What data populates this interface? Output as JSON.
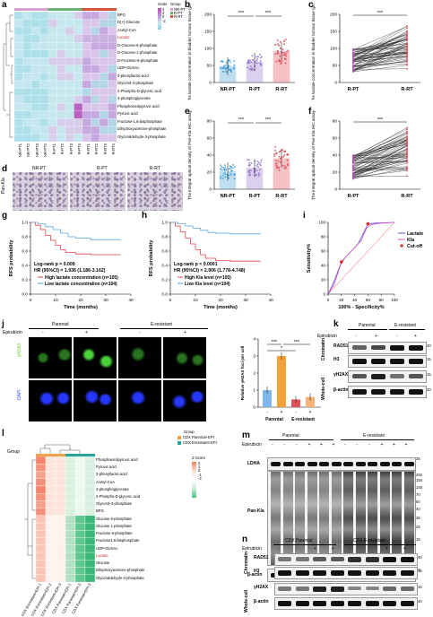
{
  "panels": {
    "a": {
      "label": "a",
      "metabolites": [
        "BPG",
        "D(+)-Glucose",
        "Acetyl-CoA",
        "Lactate",
        "D-Glucose-6-phosphate",
        "D-Glucose-1-phosphate",
        "D-Fructose-6-phosphate",
        "UDP-GlcNAc",
        "3-phenyllactic-acid",
        "Glycerol-3-phosphate",
        "2-Phospho-D-glyceric acid",
        "3-phosphoglycerate",
        "Phosphoenolpyruvic acid",
        "Pyruvic acid",
        "Fructose-1,6-bisphosphate",
        "Dihydroxyacetone-phosphate",
        "Glyceraldehyde-3-phosphate"
      ],
      "samples": [
        "NR-PT1",
        "NR-PT2",
        "NR-PT3",
        "NR-PT4",
        "R-PT1",
        "R-PT2",
        "R-PT3",
        "R-PT4",
        "R-RT1",
        "R-RT2",
        "R-RT3",
        "R-RT4"
      ],
      "scale_title": "Scale",
      "scale_ticks": [
        "4",
        "2",
        "0",
        "-2"
      ],
      "group_title": "Group",
      "groups": [
        "NR-PT",
        "R-PT",
        "R-RT"
      ],
      "group_colors": [
        "#d8a1d0",
        "#67b26f",
        "#d2573a"
      ]
    },
    "b": {
      "label": "b",
      "ylabel": "The lactate concentration in bladder tumour tissue (μmol/g)",
      "categories": [
        "NR-PT",
        "R-PT",
        "R-RT"
      ],
      "sig": [
        "***",
        "***"
      ],
      "yticks": [
        "0",
        "50",
        "100",
        "150",
        "200"
      ]
    },
    "c": {
      "label": "c",
      "ylabel": "The lactate concentration in bladder tumour tissue (μmol/g)",
      "categories": [
        "R-PT",
        "R-RT"
      ],
      "sig": "***",
      "yticks": [
        "0",
        "50",
        "100",
        "150",
        "200"
      ]
    },
    "d": {
      "label": "d",
      "cols": [
        "NR-PT",
        "R-PT",
        "R-RT"
      ],
      "row": "Pan-Kla"
    },
    "e": {
      "label": "e",
      "ylabel": "The integral optical density of Pan-Kla IHC assay",
      "categories": [
        "NR-PT",
        "R-PT",
        "R-RT"
      ],
      "sig": [
        "***",
        "***"
      ],
      "yticks": [
        "0",
        "20",
        "40",
        "60",
        "80"
      ]
    },
    "f": {
      "label": "f",
      "ylabel": "The integral optical density of Pan-Kla IHC assay",
      "categories": [
        "R-PT",
        "R-RT"
      ],
      "sig": "***",
      "yticks": [
        "0",
        "20",
        "40",
        "60",
        "80"
      ]
    },
    "g": {
      "label": "g",
      "ylabel": "RFS probability",
      "xlabel": "Time (months)",
      "logrank": "Log-rank p = 0.009",
      "hr": "HR (95%CI) = 1.936 (1.186-3.162)",
      "leg1": "High lactate concentration (n=105)",
      "leg2": "Low lactate concentration (n=104)",
      "xticks": [
        "0",
        "10",
        "20",
        "30",
        "40"
      ],
      "yticks": [
        "0.0",
        "0.2",
        "0.4",
        "0.6",
        "0.8",
        "1.0"
      ]
    },
    "h": {
      "label": "h",
      "ylabel": "RFS probability",
      "xlabel": "Time (months)",
      "logrank": "Log-rank p < 0.0001",
      "hr": "HR (95%CI) = 2.906 (1.778-4.748)",
      "leg1": "High Kla level (n=105)",
      "leg2": "Low Kla level (n=104)",
      "xticks": [
        "0",
        "10",
        "20",
        "30",
        "40"
      ],
      "yticks": [
        "0.0",
        "0.2",
        "0.4",
        "0.6",
        "0.8",
        "1.0"
      ]
    },
    "i": {
      "label": "i",
      "ylabel": "Sensitivity%",
      "xlabel": "100% - Specificity%",
      "leg": [
        "Lactate",
        "Kla",
        "Cut-off"
      ],
      "xticks": [
        "0",
        "20",
        "40",
        "60",
        "80",
        "100"
      ],
      "yticks": [
        "0",
        "20",
        "40",
        "60",
        "80",
        "100"
      ]
    },
    "j": {
      "label": "j",
      "parental": "Parental",
      "resistant": "E-resistant",
      "epirubicin": "Epirubicin",
      "signs": [
        "-",
        "+",
        "-",
        "+"
      ],
      "rows": [
        "γH2AX",
        "DAPI"
      ],
      "bar_ylabel": "Relative γH2AX foci per cell",
      "bar_sig": [
        "***",
        "***",
        "*"
      ],
      "bar_x": [
        "-",
        "+",
        "-",
        "+"
      ],
      "bar_groups": [
        "Parental",
        "E-resistant"
      ],
      "bar_values": [
        1.0,
        3.0,
        0.45,
        0.6
      ],
      "bar_yticks": [
        "0",
        "1",
        "2",
        "3",
        "4"
      ]
    },
    "k": {
      "label": "k",
      "parental": "Parental",
      "resistant": "E-resistant",
      "epirubicin": "Epirubicin",
      "signs": [
        "-",
        "+",
        "-",
        "+"
      ],
      "blots": [
        "RAD51",
        "H3",
        "γH2AX",
        "β-actin"
      ],
      "sections": [
        "Chromatin",
        "Whole-cell"
      ],
      "mw": [
        "40",
        "15",
        "15",
        "40"
      ]
    },
    "l": {
      "label": "l",
      "group_title": "Group",
      "legend": [
        "CDX Parental+EPI",
        "CDX Eresistant+EPI"
      ],
      "metabolites": [
        "Phosphoenolpyruvic acid",
        "Pyruvic acid",
        "3-phenyllactic-acid",
        "Acetyl-CoA",
        "3-phosphoglycerate",
        "2-Phospho-D-glyceric acid",
        "Glycerol-3-phosphate",
        "BPG",
        "Glucose 6-phosphate",
        "Glucose 1-phosphate",
        "Fructose 6-phosphate",
        "Fructose1,6-bisphosphate",
        "UDP-GlcNAc",
        "Lactate",
        "Glucose",
        "Dihydroxyacetone-phosphate",
        "Glyceraldehyde-3-phosphate"
      ],
      "samples": [
        "CDX Eresistant+EPI-1",
        "CDX Eresistant+EPI-2",
        "CDX Eresistant+EPI-3",
        "CDX Parental+EPI-1",
        "CDX Parental+EPI-2",
        "CDX Parental+EPI-3"
      ],
      "zscore": "Z-Score",
      "zticks": [
        "2",
        "1",
        "0",
        "-1",
        "-2"
      ],
      "group_colors": [
        "#f0a14a",
        "#2aa39a"
      ]
    },
    "m": {
      "label": "m",
      "parental": "Parental",
      "resistant": "E-resistant",
      "epirubicin": "Epirubicin",
      "signs": [
        "-",
        "-",
        "-",
        "+",
        "+",
        "+",
        "-",
        "-",
        "-",
        "+",
        "+",
        "+"
      ],
      "blots": [
        "LDHA",
        "Pan-Kla",
        "β-actin"
      ],
      "mw": [
        "35",
        "250",
        "150",
        "100",
        "70",
        "50",
        "40",
        "35",
        "25",
        "15",
        "40"
      ]
    },
    "n": {
      "label": "n",
      "parental": "CDX Parental",
      "resistant": "CDX E-resistant",
      "epirubicin": "Epirubicin",
      "signs": [
        "-",
        "-",
        "+",
        "+",
        "-",
        "-",
        "+",
        "+"
      ],
      "blots": [
        "RAD51",
        "H3",
        "γH2AX",
        "β-actin"
      ],
      "sections": [
        "Chromatin",
        "Whole-cell"
      ],
      "mw": [
        "40",
        "15",
        "15",
        "40"
      ]
    }
  }
}
